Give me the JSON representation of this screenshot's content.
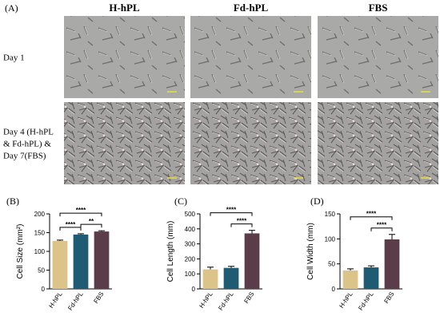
{
  "panel_a": {
    "label": "(A)",
    "columns": [
      "H-hPL",
      "Fd-hPL",
      "FBS"
    ],
    "rows": [
      [
        "Day 1"
      ],
      [
        "Day 4 (H-hPL",
        "& Fd-hPL) &",
        "Day 7(FBS)"
      ]
    ]
  },
  "chart_data": [
    {
      "type": "bar",
      "panel_label": "(B)",
      "y_label": "Cell Size (mm²)",
      "categories": [
        "H-hPL",
        "Fd-hPL",
        "FBS"
      ],
      "values": [
        128,
        145,
        153
      ],
      "errors": [
        2,
        2,
        2
      ],
      "colors": [
        "#dcc38a",
        "#1f5c74",
        "#5a3d49"
      ],
      "ylim": [
        0,
        200
      ],
      "yticks": [
        0,
        50,
        100,
        150,
        200
      ],
      "annotations": [
        {
          "text": "****",
          "pair": [
            0,
            1
          ]
        },
        {
          "text": "**",
          "pair": [
            1,
            2
          ]
        },
        {
          "text": "****",
          "pair": [
            0,
            2
          ]
        }
      ]
    },
    {
      "type": "bar",
      "panel_label": "(C)",
      "y_label": "Cell Length (mm)",
      "categories": [
        "H-hPL",
        "Fd-hPL",
        "FBS"
      ],
      "values": [
        130,
        140,
        370
      ],
      "errors": [
        15,
        10,
        20
      ],
      "colors": [
        "#dcc38a",
        "#1f5c74",
        "#5a3d49"
      ],
      "ylim": [
        0,
        500
      ],
      "yticks": [
        0,
        100,
        200,
        300,
        400,
        500
      ],
      "annotations": [
        {
          "text": "****",
          "pair": [
            1,
            2
          ]
        },
        {
          "text": "****",
          "pair": [
            0,
            2
          ]
        }
      ]
    },
    {
      "type": "bar",
      "panel_label": "(D)",
      "y_label": "Cell Width (mm)",
      "categories": [
        "H-hPL",
        "Fd-hPL",
        "FBS"
      ],
      "values": [
        37,
        43,
        99
      ],
      "errors": [
        3,
        3,
        10
      ],
      "colors": [
        "#dcc38a",
        "#1f5c74",
        "#5a3d49"
      ],
      "ylim": [
        0,
        150
      ],
      "yticks": [
        0,
        50,
        100,
        150
      ],
      "annotations": [
        {
          "text": "****",
          "pair": [
            1,
            2
          ]
        },
        {
          "text": "****",
          "pair": [
            0,
            2
          ]
        }
      ]
    }
  ]
}
